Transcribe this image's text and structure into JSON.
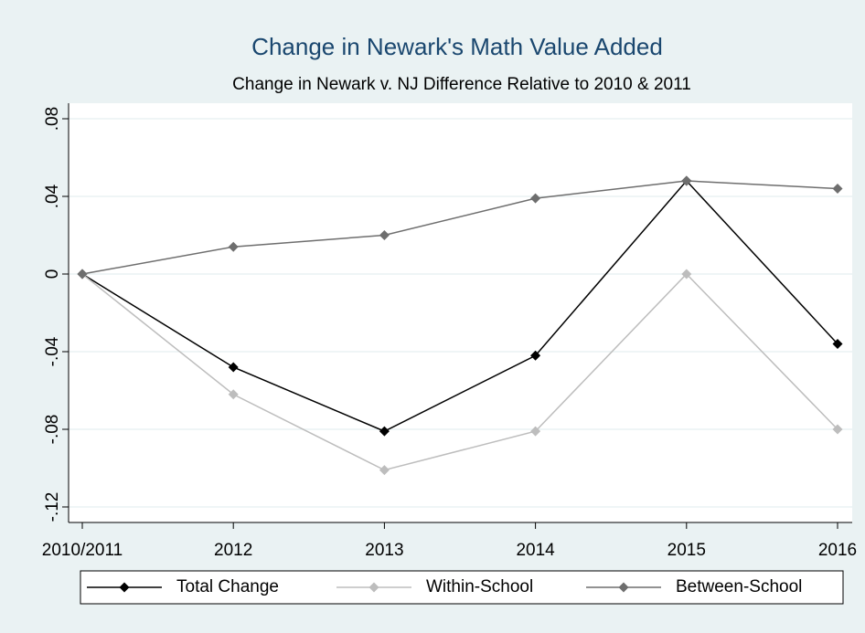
{
  "chart_data": {
    "type": "line",
    "title": "Change in Newark's Math Value Added",
    "subtitle": "Change in Newark v. NJ Difference Relative to 2010 & 2011",
    "categories": [
      "2010/2011",
      "2012",
      "2013",
      "2014",
      "2015",
      "2016"
    ],
    "series": [
      {
        "name": "Total Change",
        "color": "#000000",
        "values": [
          0,
          -0.048,
          -0.081,
          -0.042,
          0.048,
          -0.036
        ]
      },
      {
        "name": "Within-School",
        "color": "#bdbdbd",
        "values": [
          0,
          -0.062,
          -0.101,
          -0.081,
          0,
          -0.08
        ]
      },
      {
        "name": "Between-School",
        "color": "#6e6e6e",
        "values": [
          0,
          0.014,
          0.02,
          0.039,
          0.048,
          0.044
        ]
      }
    ],
    "ylim": [
      -0.128,
      0.088
    ],
    "yticks": [
      {
        "value": -0.12,
        "label": "-.12"
      },
      {
        "value": -0.08,
        "label": "-.08"
      },
      {
        "value": -0.04,
        "label": "-.04"
      },
      0,
      {
        "value": 0.04,
        "label": ".04"
      },
      {
        "value": 0.08,
        "label": ".08"
      }
    ],
    "grid": true,
    "legend": "bottom"
  }
}
